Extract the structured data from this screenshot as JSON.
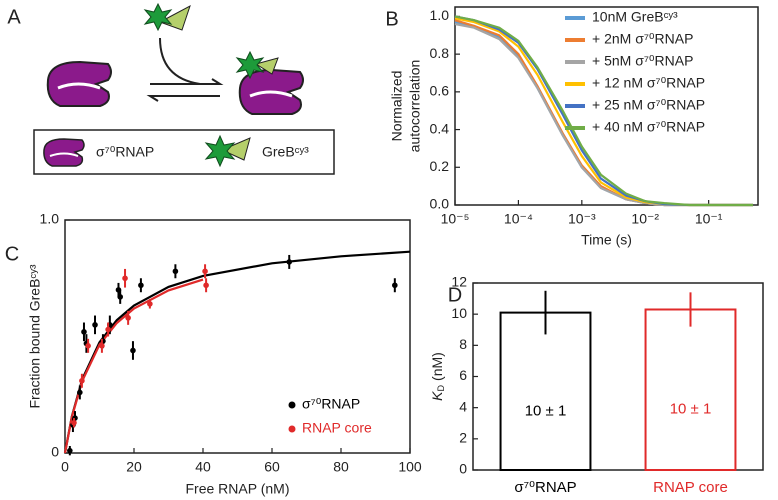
{
  "diagram": {
    "panel": "A",
    "legend": [
      "σ⁷⁰RNAP",
      "GreBᶜʸ³"
    ]
  },
  "chart_data": [
    {
      "type": "line",
      "panel": "B",
      "ylabel": [
        "Normalized",
        "autocorrelation"
      ],
      "xlabel": "Time (s)",
      "xscale": "log",
      "x": [
        1e-05,
        2e-05,
        5e-05,
        0.0001,
        0.0002,
        0.0005,
        0.001,
        0.002,
        0.005,
        0.01,
        0.02,
        0.05,
        0.1,
        0.2,
        0.5
      ],
      "series": [
        {
          "name": "10nM GreBᶜʸ³",
          "color": "#5b9bd5",
          "values": [
            0.97,
            0.95,
            0.89,
            0.79,
            0.62,
            0.37,
            0.2,
            0.09,
            0.03,
            0.01,
            0,
            0,
            0,
            0,
            0
          ]
        },
        {
          "name": "+ 2nM σ⁷⁰RNAP",
          "color": "#ed7d31",
          "values": [
            0.98,
            0.95,
            0.9,
            0.8,
            0.63,
            0.38,
            0.21,
            0.1,
            0.03,
            0.01,
            0,
            0,
            0,
            0,
            0
          ]
        },
        {
          "name": "+ 5nM σ⁷⁰RNAP",
          "color": "#a5a5a5",
          "values": [
            0.96,
            0.94,
            0.88,
            0.78,
            0.62,
            0.37,
            0.2,
            0.09,
            0.03,
            0.01,
            0,
            0,
            0,
            0,
            0
          ]
        },
        {
          "name": "+ 12 nM σ⁷⁰RNAP",
          "color": "#ffc000",
          "values": [
            0.99,
            0.97,
            0.92,
            0.84,
            0.69,
            0.44,
            0.26,
            0.12,
            0.04,
            0.015,
            0.005,
            0,
            0,
            0,
            0
          ]
        },
        {
          "name": "+ 25 nM σ⁷⁰RNAP",
          "color": "#4472c4",
          "values": [
            1.0,
            0.98,
            0.93,
            0.86,
            0.72,
            0.48,
            0.29,
            0.14,
            0.05,
            0.02,
            0.005,
            0,
            0,
            0,
            0
          ]
        },
        {
          "name": "+ 40 nM σ⁷⁰RNAP",
          "color": "#70ad47",
          "values": [
            1.0,
            0.98,
            0.94,
            0.87,
            0.73,
            0.5,
            0.31,
            0.16,
            0.06,
            0.02,
            0.01,
            0,
            0,
            0,
            0
          ]
        }
      ],
      "xlim": [
        1e-05,
        0.6
      ],
      "xticks": [
        {
          "value": 1e-05,
          "label": "10⁻⁵"
        },
        {
          "value": 0.0001,
          "label": "10⁻⁴"
        },
        {
          "value": 0.001,
          "label": "10⁻³"
        },
        {
          "value": 0.01,
          "label": "10⁻²"
        },
        {
          "value": 0.1,
          "label": "10⁻¹"
        }
      ],
      "ylim": [
        0,
        1.05
      ],
      "yticks": [
        {
          "value": 0,
          "label": "0.0"
        },
        0.2,
        0.4,
        0.6,
        0.8,
        {
          "value": 1,
          "label": "1.0"
        }
      ]
    },
    {
      "type": "scatter",
      "panel": "C",
      "ylabel": "Fraction bound GreBᶜʸ³",
      "xlabel": "Free RNAP (nM)",
      "series": [
        {
          "name": "σ⁷⁰RNAP",
          "color": "#000000",
          "x": [
            1.4,
            2.3,
            2.9,
            4.3,
            5.5,
            6.2,
            8.7,
            11,
            13,
            15.5,
            16,
            19.7,
            22,
            32,
            65,
            95.6
          ],
          "values": [
            0.01,
            0.12,
            0.15,
            0.26,
            0.52,
            0.47,
            0.55,
            0.48,
            0.55,
            0.7,
            0.67,
            0.44,
            0.72,
            0.78,
            0.82,
            0.72
          ],
          "errors": [
            0.02,
            0.03,
            0.03,
            0.03,
            0.04,
            0.04,
            0.04,
            0.03,
            0.04,
            0.03,
            0.03,
            0.04,
            0.03,
            0.03,
            0.03,
            0.03
          ]
        },
        {
          "name": "RNAP core",
          "color": "#e02a2a",
          "x": [
            2.6,
            4.9,
            6.7,
            10.7,
            12.5,
            17.4,
            18.3,
            24.6,
            40.6,
            40.9
          ],
          "values": [
            0.13,
            0.31,
            0.46,
            0.46,
            0.53,
            0.75,
            0.58,
            0.64,
            0.78,
            0.72
          ],
          "errors": [
            0.02,
            0.03,
            0.03,
            0.03,
            0.03,
            0.04,
            0.03,
            0.02,
            0.03,
            0.03
          ]
        }
      ],
      "fits": [
        {
          "color": "#000000",
          "x": [
            0,
            2,
            5,
            10,
            15,
            20,
            30,
            40,
            60,
            80,
            100
          ],
          "values": [
            0,
            0.158,
            0.317,
            0.475,
            0.57,
            0.633,
            0.713,
            0.76,
            0.814,
            0.844,
            0.864
          ]
        },
        {
          "color": "#e02a2a",
          "x": [
            0,
            2,
            5,
            10,
            15,
            20,
            30,
            40
          ],
          "values": [
            0,
            0.155,
            0.31,
            0.465,
            0.558,
            0.62,
            0.698,
            0.744
          ]
        }
      ],
      "xlim": [
        0,
        100
      ],
      "xticks": [
        0,
        20,
        40,
        60,
        80,
        100
      ],
      "ylim": [
        0,
        1
      ],
      "yticks": [
        0,
        {
          "value": 1,
          "label": "1.0"
        }
      ]
    },
    {
      "type": "bar",
      "panel": "D",
      "ylabel": {
        "symbol": "K",
        "subscript": "D",
        "unit": "(nM)"
      },
      "categories": [
        "σ⁷⁰RNAP",
        "RNAP core"
      ],
      "colors": [
        "#000000",
        "#e02a2a"
      ],
      "values": [
        10.1,
        10.3
      ],
      "errors": [
        1.4,
        1.1
      ],
      "value_labels": [
        "10 ± 1",
        "10 ± 1"
      ],
      "ylim": [
        0,
        12
      ],
      "yticks": [
        0,
        2,
        4,
        6,
        8,
        10,
        12
      ]
    }
  ]
}
